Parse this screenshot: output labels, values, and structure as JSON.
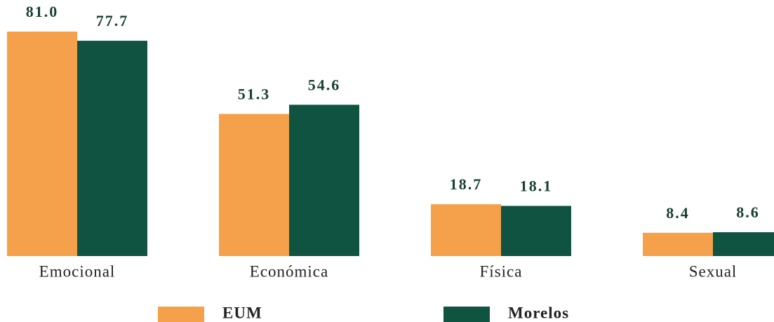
{
  "chart_data": {
    "type": "bar",
    "categories": [
      "Emocional",
      "Económica",
      "Física",
      "Sexual"
    ],
    "series": [
      {
        "name": "EUM",
        "color": "#f5a04a",
        "values": [
          81.0,
          51.3,
          18.7,
          8.4
        ],
        "value_labels": [
          "81.0",
          "51.3",
          "18.7",
          "8.4"
        ]
      },
      {
        "name": "Morelos",
        "color": "#0f5340",
        "values": [
          77.7,
          54.6,
          18.1,
          8.6
        ],
        "value_labels": [
          "77.7",
          "54.6",
          "18.1",
          "8.6"
        ]
      }
    ]
  }
}
